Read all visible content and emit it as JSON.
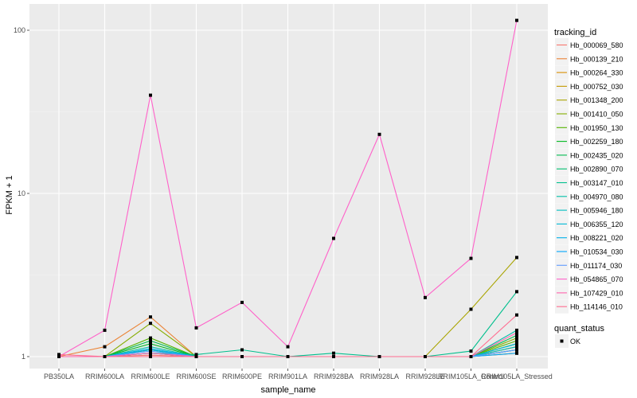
{
  "chart_data": {
    "type": "line",
    "xlabel": "sample_name",
    "ylabel": "FPKM + 1",
    "yscale": "log10",
    "ylim": [
      0.95,
      130
    ],
    "yticks": [
      1,
      10,
      100
    ],
    "ytick_labels": [
      "1",
      "10",
      "100"
    ],
    "grid": true,
    "legend_position": "right",
    "legend_title": "tracking_id",
    "shape_legend_title": "quant_status",
    "shape_legend_label": "OK",
    "categories": [
      "PB350LA",
      "RRIM600LA",
      "RRIM600LE",
      "RRIM600SE",
      "RRIM600PE",
      "RRIM901LA",
      "RRIM928BA",
      "RRIM928LA",
      "RRIM928LE",
      "RRIM105LA_Control",
      "RRIM105LA_Stressed"
    ],
    "series": [
      {
        "name": "Hb_000069_580",
        "color": "#F8766D",
        "values": [
          1.0,
          1.0,
          1.02,
          1.0,
          1.0,
          1.0,
          1.0,
          1.0,
          1.0,
          1.0,
          1.1
        ]
      },
      {
        "name": "Hb_000139_210",
        "color": "#EB8335",
        "values": [
          1.0,
          1.15,
          1.75,
          1.0,
          1.0,
          1.0,
          1.0,
          1.0,
          1.0,
          1.0,
          1.2
        ]
      },
      {
        "name": "Hb_000264_330",
        "color": "#DA8F00",
        "values": [
          1.0,
          1.0,
          1.05,
          1.0,
          1.0,
          1.0,
          1.0,
          1.0,
          1.0,
          1.0,
          1.05
        ]
      },
      {
        "name": "Hb_000752_030",
        "color": "#C49A00",
        "values": [
          1.0,
          1.0,
          1.1,
          1.0,
          1.0,
          1.0,
          1.0,
          1.0,
          1.0,
          1.0,
          1.15
        ]
      },
      {
        "name": "Hb_001348_200",
        "color": "#A9A400",
        "values": [
          1.0,
          1.0,
          1.0,
          1.0,
          1.0,
          1.0,
          1.0,
          1.0,
          1.0,
          1.95,
          4.05
        ]
      },
      {
        "name": "Hb_001410_050",
        "color": "#86AC00",
        "values": [
          1.0,
          1.0,
          1.6,
          1.0,
          1.0,
          1.0,
          1.0,
          1.0,
          1.0,
          1.0,
          1.3
        ]
      },
      {
        "name": "Hb_001950_130",
        "color": "#53B400",
        "values": [
          1.0,
          1.0,
          1.3,
          1.0,
          1.0,
          1.0,
          1.0,
          1.0,
          1.0,
          1.0,
          1.25
        ]
      },
      {
        "name": "Hb_002259_180",
        "color": "#00B81F",
        "values": [
          1.0,
          1.0,
          1.2,
          1.0,
          1.0,
          1.0,
          1.0,
          1.0,
          1.0,
          1.0,
          1.1
        ]
      },
      {
        "name": "Hb_002435_020",
        "color": "#00BB4E",
        "values": [
          1.0,
          1.0,
          1.25,
          1.0,
          1.0,
          1.0,
          1.0,
          1.0,
          1.0,
          1.0,
          1.35
        ]
      },
      {
        "name": "Hb_002890_070",
        "color": "#00BD70",
        "values": [
          1.0,
          1.0,
          1.1,
          1.0,
          1.0,
          1.0,
          1.0,
          1.0,
          1.0,
          1.0,
          1.2
        ]
      },
      {
        "name": "Hb_003147_010",
        "color": "#00BF8D",
        "values": [
          1.0,
          1.0,
          1.05,
          1.03,
          1.1,
          1.0,
          1.05,
          1.0,
          1.0,
          1.08,
          2.5
        ]
      },
      {
        "name": "Hb_004970_080",
        "color": "#00BFA7",
        "values": [
          1.0,
          1.0,
          1.15,
          1.0,
          1.0,
          1.0,
          1.0,
          1.0,
          1.0,
          1.0,
          1.45
        ]
      },
      {
        "name": "Hb_005946_180",
        "color": "#00BDBF",
        "values": [
          1.0,
          1.0,
          1.05,
          1.0,
          1.0,
          1.0,
          1.0,
          1.0,
          1.0,
          1.0,
          1.15
        ]
      },
      {
        "name": "Hb_006355_120",
        "color": "#00B8D5",
        "values": [
          1.0,
          1.0,
          1.1,
          1.0,
          1.0,
          1.0,
          1.0,
          1.0,
          1.0,
          1.0,
          1.2
        ]
      },
      {
        "name": "Hb_008221_020",
        "color": "#00B0EA",
        "values": [
          1.0,
          1.0,
          1.12,
          1.0,
          1.0,
          1.0,
          1.0,
          1.0,
          1.0,
          1.0,
          1.1
        ]
      },
      {
        "name": "Hb_010534_030",
        "color": "#00A5FB",
        "values": [
          1.0,
          1.0,
          1.05,
          1.0,
          1.0,
          1.0,
          1.0,
          1.0,
          1.0,
          1.0,
          1.05
        ]
      },
      {
        "name": "Hb_011174_030",
        "color": "#619CFF",
        "values": [
          1.0,
          1.0,
          1.08,
          1.0,
          1.0,
          1.0,
          1.0,
          1.0,
          1.0,
          1.0,
          1.1
        ]
      },
      {
        "name": "Hb_054865_070",
        "color": "#FF61C9",
        "values": [
          1.0,
          1.45,
          40.0,
          1.5,
          2.15,
          1.15,
          5.3,
          23.0,
          2.3,
          4.0,
          115.0
        ]
      },
      {
        "name": "Hb_107429_010",
        "color": "#FF65AD",
        "values": [
          1.0,
          1.0,
          1.05,
          1.0,
          1.0,
          1.0,
          1.0,
          1.0,
          1.0,
          1.0,
          1.4
        ]
      },
      {
        "name": "Hb_114146_010",
        "color": "#FF6C90",
        "values": [
          1.03,
          1.0,
          1.0,
          1.0,
          1.0,
          1.0,
          1.0,
          1.0,
          1.0,
          1.0,
          1.8
        ]
      }
    ]
  }
}
